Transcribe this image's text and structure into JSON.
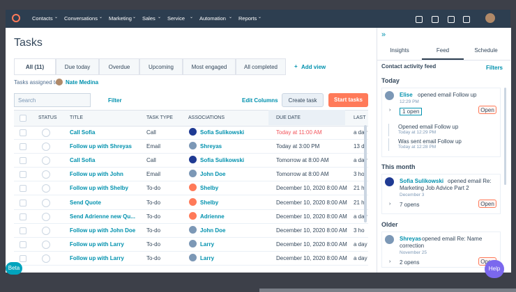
{
  "nav": {
    "items": [
      "Contacts",
      "Conversations",
      "Marketing",
      "Sales",
      "Service",
      "Automation",
      "Reports"
    ]
  },
  "page": {
    "title": "Tasks",
    "views": [
      "All (11)",
      "Due today",
      "Overdue",
      "Upcoming",
      "Most engaged",
      "All completed"
    ],
    "add_view": "Add view",
    "assigned_label": "Tasks assigned to:",
    "assignee": "Nate Medina",
    "search": "Search",
    "filter": "Filter",
    "edit_columns": "Edit Columns",
    "create_task": "Create task",
    "start_tasks": "Start tasks"
  },
  "table": {
    "columns": [
      "STATUS",
      "TITLE",
      "TASK TYPE",
      "ASSOCIATIONS",
      "DUE DATE",
      "LAST"
    ],
    "rows": [
      [
        "Call Sofia",
        "Call",
        "Sofia Sulikowski",
        "Today at 11:00 AM",
        "a day"
      ],
      [
        "Follow up with Shreyas",
        "Email",
        "Shreyas",
        "Today at 3:00 PM",
        "13 d"
      ],
      [
        "Call Sofia",
        "Call",
        "Sofia Sulikowski",
        "Tomorrow at 8:00 AM",
        "a day"
      ],
      [
        "Follow up with John",
        "Email",
        "John Doe",
        "Tomorrow at 8:00 AM",
        "3 ho"
      ],
      [
        "Follow up with Shelby",
        "To-do",
        "Shelby",
        "December 10, 2020 8:00 AM",
        "21 h"
      ],
      [
        "Send Quote",
        "To-do",
        "Shelby",
        "December 10, 2020 8:00 AM",
        "21 h"
      ],
      [
        "Send Adrienne new Qu...",
        "To-do",
        "Adrienne",
        "December 10, 2020 8:00 AM",
        "a day"
      ],
      [
        "Follow up with John Doe",
        "To-do",
        "John Doe",
        "December 10, 2020 8:00 AM",
        "3 ho"
      ],
      [
        "Follow up with Larry",
        "To-do",
        "Larry",
        "December 10, 2020 8:00 AM",
        "a day"
      ],
      [
        "Follow up with Larry",
        "To-do",
        "Larry",
        "December 10, 2020 8:00 AM",
        "a day"
      ]
    ]
  },
  "sidebar": {
    "tabs": [
      "Insights",
      "Feed",
      "Schedule"
    ],
    "feed_title": "Contact activity feed",
    "filters": "Filters",
    "sections": [
      {
        "heading": "Today",
        "name": "Elise",
        "text": "opened email Follow up",
        "time": "12:29 PM",
        "opens": "1 open",
        "button": "Open",
        "details": [
          {
            "text": "Opened email Follow up",
            "time": "Today at 12:29 PM"
          },
          {
            "text": "Was sent email Follow up",
            "time": "Today at 12:28 PM"
          }
        ]
      },
      {
        "heading": "This month",
        "name": "Sofia Sulikowski",
        "text": "opened email Re: Marketing Job Advice Part 2",
        "time": "December 3",
        "opens": "7 opens",
        "button": "Open"
      },
      {
        "heading": "Older",
        "name": "Shreyas",
        "text": "opened email Re: Name correction",
        "time": "November 25",
        "opens": "2 opens",
        "button": "Open"
      }
    ]
  },
  "footer": {
    "beta": "Beta",
    "help": "Help"
  }
}
